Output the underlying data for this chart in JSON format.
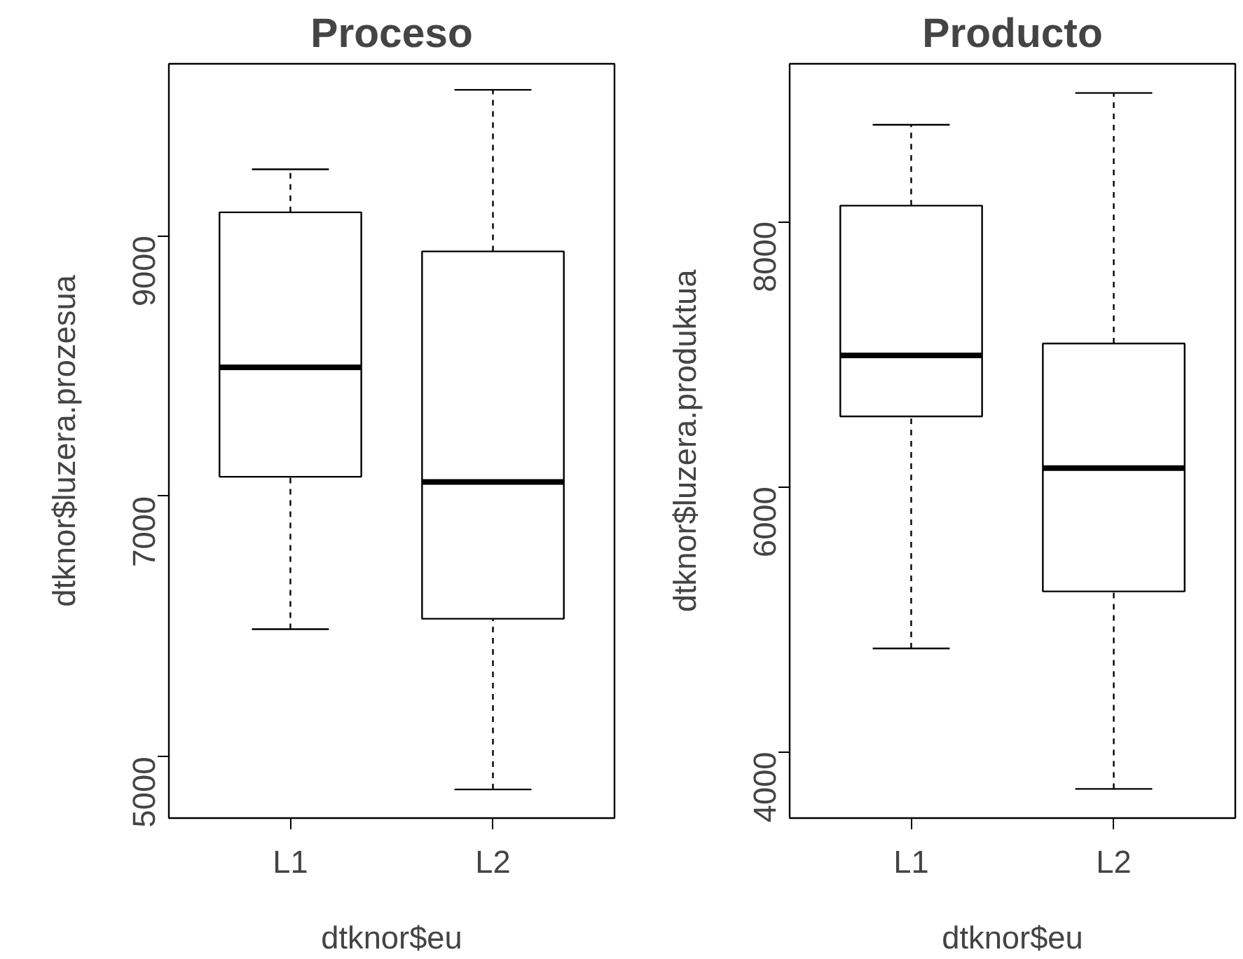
{
  "chart_data": [
    {
      "type": "box",
      "title": "Proceso",
      "xlabel": "dtknor$eu",
      "ylabel": "dtknor$luzera.prozesua",
      "categories": [
        "L1",
        "L2"
      ],
      "boxes": [
        {
          "low": 5980,
          "q1": 7150,
          "median": 7990,
          "q3": 9180,
          "high": 9510
        },
        {
          "low": 4750,
          "q1": 6060,
          "median": 7110,
          "q3": 8880,
          "high": 10120
        }
      ],
      "ylim": [
        4530,
        10320
      ],
      "yticks": [
        5000,
        7000,
        9000
      ],
      "color": "#000000"
    },
    {
      "type": "box",
      "title": "Producto",
      "xlabel": "dtknor$eu",
      "ylabel": "dtknor$luzera.produktua",
      "categories": [
        "L1",
        "L2"
      ],
      "boxes": [
        {
          "low": 4780,
          "q1": 6530,
          "median": 6990,
          "q3": 8120,
          "high": 8730
        },
        {
          "low": 3720,
          "q1": 5210,
          "median": 6140,
          "q3": 7080,
          "high": 8970
        }
      ],
      "ylim": [
        3500,
        9190
      ],
      "yticks": [
        4000,
        6000,
        8000
      ],
      "color": "#000000"
    }
  ]
}
